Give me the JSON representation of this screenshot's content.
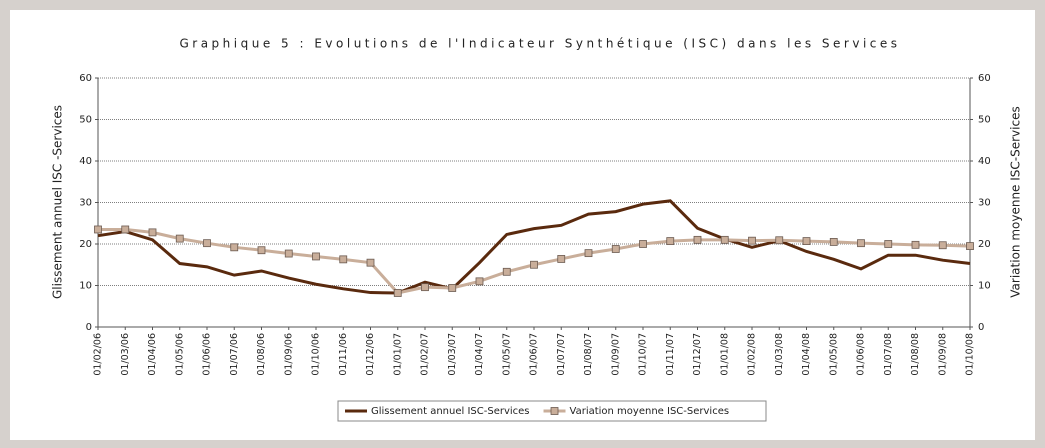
{
  "chart_data": {
    "type": "line",
    "title": "Graphique 5 : Evolutions de l'Indicateur Synthétique (ISC) dans les Services",
    "ylabel": "Glissement annuel ISC -Services",
    "y2label": "Variation moyenne ISC-Services",
    "categories": [
      "01/02/06",
      "01/03/06",
      "01/04/06",
      "01/05/06",
      "01/06/06",
      "01/07/06",
      "01/08/06",
      "01/09/06",
      "01/10/06",
      "01/11/06",
      "01/12/06",
      "01/01/07",
      "01/02/07",
      "01/03/07",
      "01/04/07",
      "01/05/07",
      "01/06/07",
      "01/07/07",
      "01/08/07",
      "01/09/07",
      "01/10/07",
      "01/11/07",
      "01/12/07",
      "01/01/08",
      "01/02/08",
      "01/03/08",
      "01/04/08",
      "01/05/08",
      "01/06/08",
      "01/07/08",
      "01/08/08",
      "01/09/08",
      "01/10/08"
    ],
    "series": [
      {
        "name": "Glissement annuel ISC-Services",
        "color": "#5a2a0e",
        "values": [
          22,
          23,
          21,
          15.3,
          14.5,
          12.5,
          13.5,
          11.8,
          10.3,
          9.2,
          8.3,
          8.2,
          10.8,
          9.2,
          15.5,
          22.3,
          23.7,
          24.5,
          27.2,
          27.8,
          29.6,
          30.4,
          23.8,
          21.2,
          19.2,
          20.8,
          18.2,
          16.3,
          14,
          17.3,
          17.3,
          16.1,
          15.3
        ]
      },
      {
        "name": "Variation moyenne ISC-Services",
        "color": "#c9ae9a",
        "axis": "y2",
        "marker": "square",
        "values": [
          23.5,
          23.5,
          22.8,
          21.3,
          20.2,
          19.2,
          18.5,
          17.7,
          17,
          16.3,
          15.5,
          8.2,
          9.6,
          9.4,
          11,
          13.3,
          15,
          16.4,
          17.8,
          18.8,
          20,
          20.7,
          21,
          21,
          20.8,
          20.9,
          20.7,
          20.5,
          20.2,
          20,
          19.8,
          19.7,
          19.5
        ]
      }
    ],
    "ylim": [
      0,
      60
    ],
    "yticks": [
      0,
      10,
      20,
      30,
      40,
      50,
      60
    ],
    "y2lim": [
      0,
      60
    ],
    "y2ticks": [
      0,
      10,
      20,
      30,
      40,
      50,
      60
    ],
    "grid": true,
    "legend": "bottom"
  }
}
